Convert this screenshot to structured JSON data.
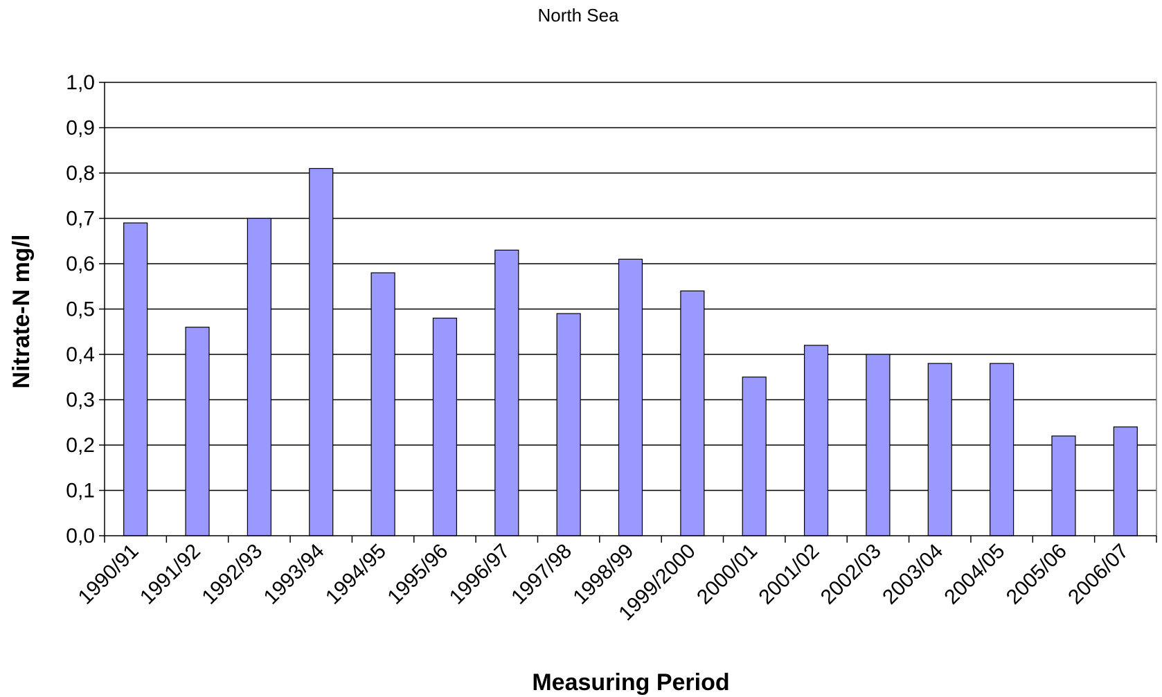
{
  "chart_data": {
    "type": "bar",
    "title": "North Sea",
    "xlabel": "Measuring Period",
    "ylabel": "Nitrate-N mg/l",
    "ylim": [
      0,
      1.0
    ],
    "yticks": [
      "0,0",
      "0,1",
      "0,2",
      "0,3",
      "0,4",
      "0,5",
      "0,6",
      "0,7",
      "0,8",
      "0,9",
      "1,0"
    ],
    "grid": true,
    "legend": "none",
    "categories": [
      "1990/91",
      "1991/92",
      "1992/93",
      "1993/94",
      "1994/95",
      "1995/96",
      "1996/97",
      "1997/98",
      "1998/99",
      "1999/2000",
      "2000/01",
      "2001/02",
      "2002/03",
      "2003/04",
      "2004/05",
      "2005/06",
      "2006/07"
    ],
    "values": [
      0.69,
      0.46,
      0.7,
      0.81,
      0.58,
      0.48,
      0.63,
      0.49,
      0.61,
      0.54,
      0.35,
      0.42,
      0.4,
      0.38,
      0.38,
      0.22,
      0.24
    ],
    "colors": {
      "bar_fill": "#9999ff",
      "bar_stroke": "#000000",
      "gridline": "#000000",
      "axis": "#000000"
    }
  }
}
